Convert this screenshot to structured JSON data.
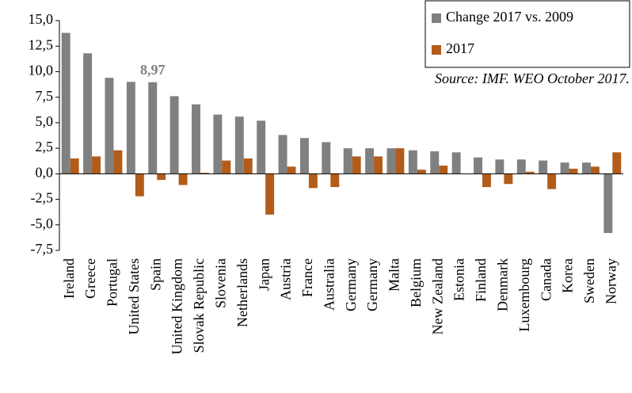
{
  "chart_data": {
    "type": "bar",
    "annotation": "Source: IMF. WEO October 2017.",
    "categories": [
      "Ireland",
      "Greece",
      "Portugal",
      "United States",
      "Spain",
      "United Kingdom",
      "Slovak Republic",
      "Slovenia",
      "Netherlands",
      "Japan",
      "Austria",
      "France",
      "Australia",
      "Germany",
      "Germany",
      "Malta",
      "Belgium",
      "New Zealand",
      "Estonia",
      "Finland",
      "Denmark",
      "Luxembourg",
      "Canada",
      "Korea",
      "Sweden",
      "Norway"
    ],
    "series": [
      {
        "name": "Change 2017 vs. 2009",
        "color": "#808080",
        "values": [
          13.8,
          11.8,
          9.4,
          9.0,
          8.97,
          7.6,
          6.8,
          5.8,
          5.6,
          5.2,
          3.8,
          3.5,
          3.1,
          2.5,
          2.5,
          2.5,
          2.3,
          2.2,
          2.1,
          1.6,
          1.4,
          1.4,
          1.3,
          1.1,
          1.1,
          -5.8
        ],
        "value_labels": [
          null,
          null,
          null,
          null,
          "8,97",
          null,
          null,
          null,
          null,
          null,
          null,
          null,
          null,
          null,
          null,
          null,
          null,
          null,
          null,
          null,
          null,
          null,
          null,
          null,
          null,
          null
        ]
      },
      {
        "name": "2017",
        "color": "#b35c1a",
        "values": [
          1.5,
          1.7,
          2.3,
          -2.2,
          -0.6,
          -1.1,
          0.1,
          1.3,
          1.5,
          -4.0,
          0.7,
          -1.4,
          -1.3,
          1.7,
          1.7,
          2.5,
          0.4,
          0.8,
          0.0,
          -1.3,
          -1.0,
          0.2,
          -1.5,
          0.5,
          0.7,
          2.1
        ]
      }
    ],
    "ylim": [
      -7.5,
      15
    ],
    "yticks": [
      {
        "value": -7.5,
        "label": "-7,5"
      },
      {
        "value": -5,
        "label": "-5,0"
      },
      {
        "value": -2.5,
        "label": "-2,5"
      },
      {
        "value": 0,
        "label": "0,0"
      },
      {
        "value": 2.5,
        "label": "2,5"
      },
      {
        "value": 5,
        "label": "5,0"
      },
      {
        "value": 7.5,
        "label": "7,5"
      },
      {
        "value": 10,
        "label": "10,0"
      },
      {
        "value": 12.5,
        "label": "12,5"
      },
      {
        "value": 15,
        "label": "15,0"
      }
    ],
    "legend": "top-right"
  }
}
